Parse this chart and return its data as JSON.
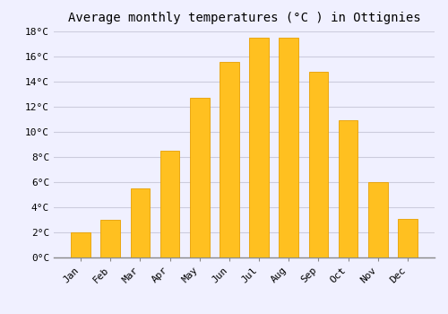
{
  "title": "Average monthly temperatures (°C ) in Ottignies",
  "months": [
    "Jan",
    "Feb",
    "Mar",
    "Apr",
    "May",
    "Jun",
    "Jul",
    "Aug",
    "Sep",
    "Oct",
    "Nov",
    "Dec"
  ],
  "values": [
    2.0,
    3.0,
    5.5,
    8.5,
    12.7,
    15.6,
    17.5,
    17.5,
    14.8,
    10.9,
    6.0,
    3.1
  ],
  "bar_color": "#FFC020",
  "bar_edge_color": "#E8A000",
  "background_color": "#F0F0FF",
  "grid_color": "#CCCCDD",
  "ylim": [
    0,
    18
  ],
  "ytick_step": 2,
  "title_fontsize": 10,
  "tick_fontsize": 8,
  "font_family": "monospace"
}
